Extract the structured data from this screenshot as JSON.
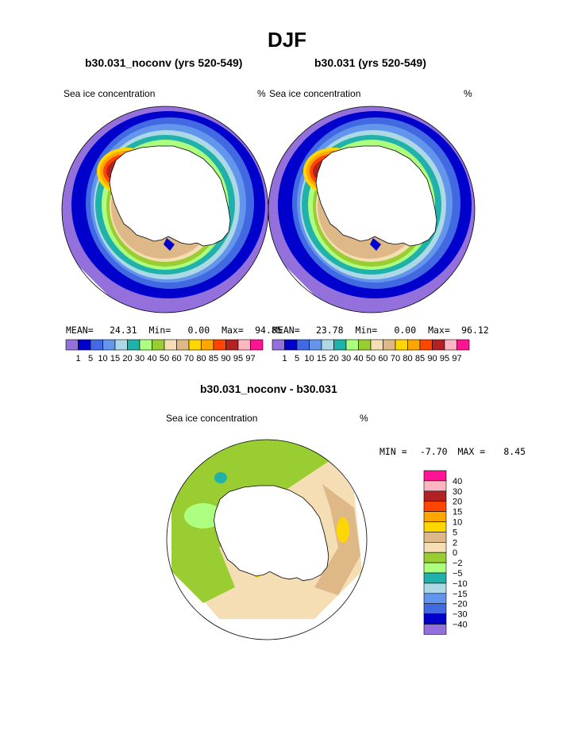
{
  "page_title": "DJF",
  "colors": {
    "c1": "#9370DB",
    "c5": "#0000CD",
    "c10": "#4169E1",
    "c15": "#6495ED",
    "c20": "#ADD8E6",
    "c30": "#20B2AA",
    "c40": "#ADFF7F",
    "c50": "#9ACD32",
    "c60": "#F5DEB3",
    "c70": "#DEB887",
    "c80": "#FFD700",
    "c85": "#FFA500",
    "c90": "#FF4500",
    "c95": "#B22222",
    "c97": "#FFB6C1",
    "c99": "#FF1493"
  },
  "panels": [
    {
      "title": "b30.031_noconv (yrs 520-549)",
      "variable": "Sea ice concentration",
      "units": "%",
      "mean_label": "MEAN=",
      "mean": "24.31",
      "min_label": "Min=",
      "min": "0.00",
      "max_label": "Max=",
      "max": "94.85"
    },
    {
      "title": "b30.031 (yrs 520-549)",
      "variable": "Sea ice concentration",
      "units": "%",
      "mean_label": "MEAN=",
      "mean": "23.78",
      "min_label": "Min=",
      "min": "0.00",
      "max_label": "Max=",
      "max": "96.12"
    },
    {
      "title": "b30.031_noconv - b30.031",
      "variable": "Sea ice concentration",
      "units": "%",
      "min_label": "MIN =",
      "min": "-7.70",
      "max_label": "MAX =",
      "max": "8.45"
    }
  ],
  "chart_data": [
    {
      "type": "heatmap",
      "projection": "south-polar-stereographic",
      "title": "b30.031_noconv (yrs 520-549)",
      "variable": "Sea ice concentration",
      "units": "%",
      "color_levels": [
        "1",
        "5",
        "10",
        "15",
        "20",
        "30",
        "40",
        "50",
        "60",
        "70",
        "80",
        "85",
        "90",
        "95",
        "97"
      ],
      "mean": 24.31,
      "min": 0.0,
      "max": 94.85
    },
    {
      "type": "heatmap",
      "projection": "south-polar-stereographic",
      "title": "b30.031 (yrs 520-549)",
      "variable": "Sea ice concentration",
      "units": "%",
      "color_levels": [
        "1",
        "5",
        "10",
        "15",
        "20",
        "30",
        "40",
        "50",
        "60",
        "70",
        "80",
        "85",
        "90",
        "95",
        "97"
      ],
      "mean": 23.78,
      "min": 0.0,
      "max": 96.12
    },
    {
      "type": "heatmap",
      "projection": "south-polar-stereographic",
      "title": "b30.031_noconv - b30.031",
      "variable": "Sea ice concentration",
      "units": "%",
      "color_levels": [
        "40",
        "30",
        "20",
        "15",
        "10",
        "5",
        "2",
        "0",
        "−2",
        "−5",
        "−10",
        "−15",
        "−20",
        "−30",
        "−40"
      ],
      "level_colors": [
        "#FF1493",
        "#FFB6C1",
        "#B22222",
        "#FF4500",
        "#FFA500",
        "#FFD700",
        "#DEB887",
        "#F5DEB3",
        "#9ACD32",
        "#ADFF7F",
        "#20B2AA",
        "#ADD8E6",
        "#6495ED",
        "#4169E1",
        "#0000CD",
        "#9370DB"
      ],
      "min": -7.7,
      "max": 8.45
    }
  ]
}
